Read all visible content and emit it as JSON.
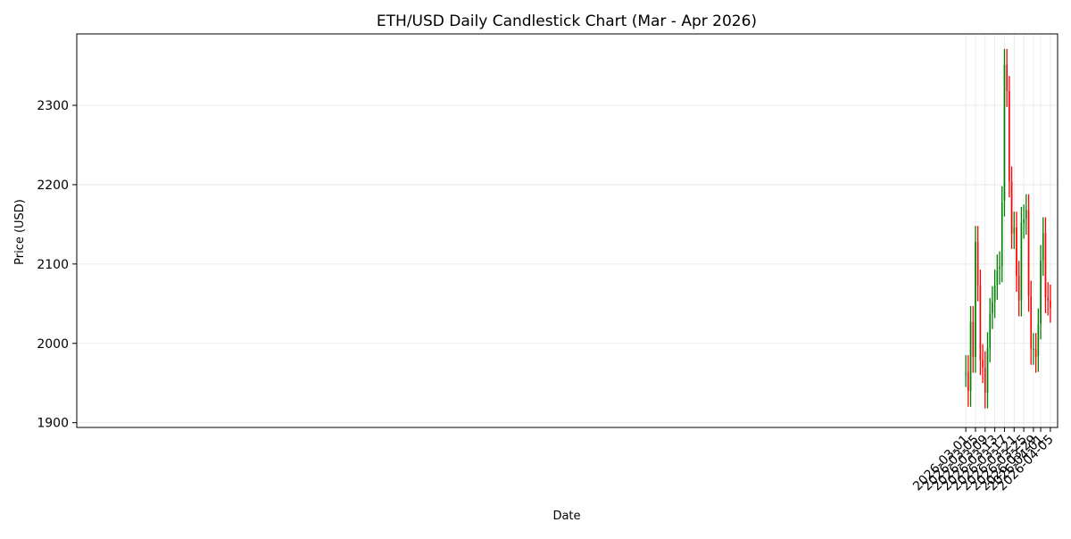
{
  "chart_data": {
    "type": "candlestick",
    "title": "ETH/USD Daily Candlestick Chart (Mar - Apr 2026)",
    "xlabel": "Date",
    "ylabel": "Price (USD)",
    "ylim": [
      1894,
      2390
    ],
    "yticks": [
      1900,
      2000,
      2100,
      2200,
      2300
    ],
    "x_date_range": [
      "2025-02-26",
      "2026-04-08"
    ],
    "xticks": [
      "2026-03-01",
      "2026-03-05",
      "2026-03-09",
      "2026-03-13",
      "2026-03-17",
      "2026-03-21",
      "2026-03-25",
      "2026-03-29",
      "2026-04-01",
      "2026-04-05"
    ],
    "grid": true,
    "colors": {
      "up": "#008000",
      "down": "#ff0000",
      "grid": "#e6e6e6",
      "axis": "#000000"
    },
    "candles": [
      {
        "date": "2026-03-01",
        "open": 1962,
        "high": 1985,
        "low": 1945,
        "close": 1962
      },
      {
        "date": "2026-03-02",
        "open": 1964,
        "high": 1985,
        "low": 1920,
        "close": 1940
      },
      {
        "date": "2026-03-03",
        "open": 1940,
        "high": 2047,
        "low": 1920,
        "close": 2027
      },
      {
        "date": "2026-03-04",
        "open": 2027,
        "high": 2047,
        "low": 1963,
        "close": 1983
      },
      {
        "date": "2026-03-05",
        "open": 1983,
        "high": 2148,
        "low": 1963,
        "close": 2128
      },
      {
        "date": "2026-03-06",
        "open": 2128,
        "high": 2148,
        "low": 2053,
        "close": 2073
      },
      {
        "date": "2026-03-07",
        "open": 2073,
        "high": 2093,
        "low": 1960,
        "close": 1979
      },
      {
        "date": "2026-03-08",
        "open": 1979,
        "high": 1999,
        "low": 1950,
        "close": 1970
      },
      {
        "date": "2026-03-09",
        "open": 1969,
        "high": 1990,
        "low": 1918,
        "close": 1938
      },
      {
        "date": "2026-03-10",
        "open": 1938,
        "high": 2014,
        "low": 1918,
        "close": 1994
      },
      {
        "date": "2026-03-11",
        "open": 1994,
        "high": 2057,
        "low": 1976,
        "close": 2037
      },
      {
        "date": "2026-03-12",
        "open": 2038,
        "high": 2072,
        "low": 2018,
        "close": 2052
      },
      {
        "date": "2026-03-13",
        "open": 2052,
        "high": 2093,
        "low": 2032,
        "close": 2073
      },
      {
        "date": "2026-03-14",
        "open": 2074,
        "high": 2112,
        "low": 2055,
        "close": 2092
      },
      {
        "date": "2026-03-15",
        "open": 2094,
        "high": 2116,
        "low": 2074,
        "close": 2096
      },
      {
        "date": "2026-03-16",
        "open": 2097,
        "high": 2198,
        "low": 2077,
        "close": 2178
      },
      {
        "date": "2026-03-17",
        "open": 2180,
        "high": 2371,
        "low": 2160,
        "close": 2351
      },
      {
        "date": "2026-03-18",
        "open": 2351,
        "high": 2371,
        "low": 2298,
        "close": 2318
      },
      {
        "date": "2026-03-19",
        "open": 2318,
        "high": 2337,
        "low": 2184,
        "close": 2204
      },
      {
        "date": "2026-03-20",
        "open": 2204,
        "high": 2223,
        "low": 2119,
        "close": 2138
      },
      {
        "date": "2026-03-21",
        "open": 2139,
        "high": 2166,
        "low": 2119,
        "close": 2146
      },
      {
        "date": "2026-03-22",
        "open": 2146,
        "high": 2166,
        "low": 2065,
        "close": 2085
      },
      {
        "date": "2026-03-23",
        "open": 2085,
        "high": 2104,
        "low": 2034,
        "close": 2054
      },
      {
        "date": "2026-03-24",
        "open": 2054,
        "high": 2172,
        "low": 2034,
        "close": 2152
      },
      {
        "date": "2026-03-25",
        "open": 2152,
        "high": 2175,
        "low": 2132,
        "close": 2156
      },
      {
        "date": "2026-03-26",
        "open": 2157,
        "high": 2188,
        "low": 2137,
        "close": 2168
      },
      {
        "date": "2026-03-27",
        "open": 2168,
        "high": 2188,
        "low": 2040,
        "close": 2060
      },
      {
        "date": "2026-03-28",
        "open": 2059,
        "high": 2079,
        "low": 1973,
        "close": 1993
      },
      {
        "date": "2026-03-29",
        "open": 1992,
        "high": 2013,
        "low": 1973,
        "close": 1993
      },
      {
        "date": "2026-03-30",
        "open": 1993,
        "high": 2013,
        "low": 1963,
        "close": 1983
      },
      {
        "date": "2026-03-31",
        "open": 1984,
        "high": 2044,
        "low": 1964,
        "close": 2024
      },
      {
        "date": "2026-04-01",
        "open": 2025,
        "high": 2124,
        "low": 2005,
        "close": 2104
      },
      {
        "date": "2026-04-02",
        "open": 2105,
        "high": 2159,
        "low": 2085,
        "close": 2139
      },
      {
        "date": "2026-04-03",
        "open": 2139,
        "high": 2159,
        "low": 2038,
        "close": 2058
      },
      {
        "date": "2026-04-04",
        "open": 2057,
        "high": 2077,
        "low": 2035,
        "close": 2054
      },
      {
        "date": "2026-04-05",
        "open": 2054,
        "high": 2074,
        "low": 2026,
        "close": 2045
      }
    ]
  }
}
